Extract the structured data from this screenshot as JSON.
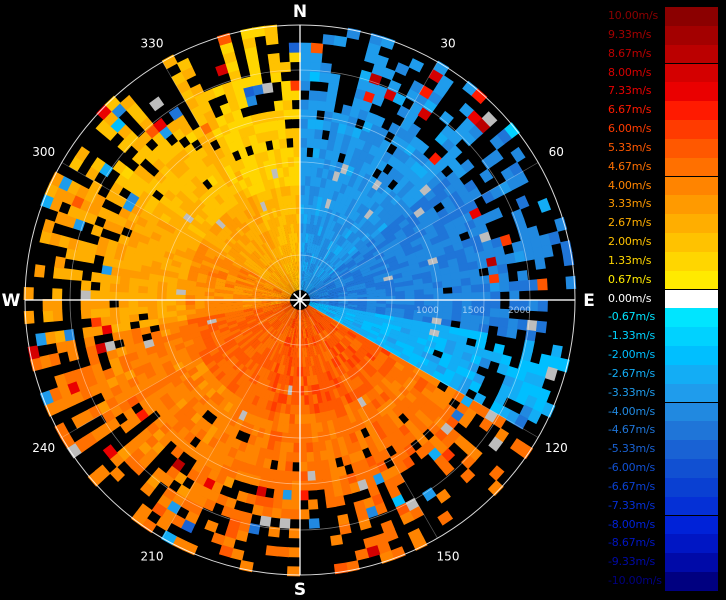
{
  "chart_data": {
    "type": "polar-heatmap",
    "title": "",
    "cardinals": [
      {
        "label": "N",
        "az": 0
      },
      {
        "label": "E",
        "az": 90
      },
      {
        "label": "S",
        "az": 180
      },
      {
        "label": "W",
        "az": 270
      }
    ],
    "azimuth_ticks": [
      {
        "label": "30",
        "az": 30
      },
      {
        "label": "60",
        "az": 60
      },
      {
        "label": "120",
        "az": 120
      },
      {
        "label": "150",
        "az": 150
      },
      {
        "label": "210",
        "az": 210
      },
      {
        "label": "240",
        "az": 240
      },
      {
        "label": "300",
        "az": 300
      },
      {
        "label": "330",
        "az": 330
      }
    ],
    "range_ring_labels": [
      "1000",
      "1500",
      "2000"
    ],
    "colorbar": {
      "unit": "m/s",
      "levels": [
        {
          "label": "10.00m/s",
          "value": 10.0,
          "color": "#8b0000"
        },
        {
          "label": "9.33m/s",
          "value": 9.33,
          "color": "#a30000"
        },
        {
          "label": "8.67m/s",
          "value": 8.67,
          "color": "#bb0000"
        },
        {
          "label": "8.00m/s",
          "value": 8.0,
          "color": "#d40000"
        },
        {
          "label": "7.33m/s",
          "value": 7.33,
          "color": "#ea0000"
        },
        {
          "label": "6.67m/s",
          "value": 6.67,
          "color": "#ff1a00"
        },
        {
          "label": "6.00m/s",
          "value": 6.0,
          "color": "#ff3b00"
        },
        {
          "label": "5.33m/s",
          "value": 5.33,
          "color": "#ff5800"
        },
        {
          "label": "4.67m/s",
          "value": 4.67,
          "color": "#ff7000"
        },
        {
          "label": "4.00m/s",
          "value": 4.0,
          "color": "#ff8400"
        },
        {
          "label": "3.33m/s",
          "value": 3.33,
          "color": "#ff9a00"
        },
        {
          "label": "2.67m/s",
          "value": 2.67,
          "color": "#ffae00"
        },
        {
          "label": "2.00m/s",
          "value": 2.0,
          "color": "#ffc200"
        },
        {
          "label": "1.33m/s",
          "value": 1.33,
          "color": "#ffd600"
        },
        {
          "label": "0.67m/s",
          "value": 0.67,
          "color": "#ffea00"
        },
        {
          "label": "0.00m/s",
          "value": 0.0,
          "color": "#ffffff"
        },
        {
          "label": "-0.67m/s",
          "value": -0.67,
          "color": "#00e5ff"
        },
        {
          "label": "-1.33m/s",
          "value": -1.33,
          "color": "#00d2ff"
        },
        {
          "label": "-2.00m/s",
          "value": -2.0,
          "color": "#00bfff"
        },
        {
          "label": "-2.67m/s",
          "value": -2.67,
          "color": "#13adf5"
        },
        {
          "label": "-3.33m/s",
          "value": -3.33,
          "color": "#1f9cec"
        },
        {
          "label": "-4.00m/s",
          "value": -4.0,
          "color": "#2189e0"
        },
        {
          "label": "-4.67m/s",
          "value": -4.67,
          "color": "#1f75d8"
        },
        {
          "label": "-5.33m/s",
          "value": -5.33,
          "color": "#1962d4"
        },
        {
          "label": "-6.00m/s",
          "value": -6.0,
          "color": "#1150d2"
        },
        {
          "label": "-6.67m/s",
          "value": -6.67,
          "color": "#0a40d2"
        },
        {
          "label": "-7.33m/s",
          "value": -7.33,
          "color": "#0530d6"
        },
        {
          "label": "-8.00m/s",
          "value": -8.0,
          "color": "#0022d8"
        },
        {
          "label": "-8.67m/s",
          "value": -8.67,
          "color": "#0016c4"
        },
        {
          "label": "-9.33m/s",
          "value": -9.33,
          "color": "#000aa8"
        },
        {
          "label": "-10.00m/s",
          "value": -10.0,
          "color": "#000080"
        }
      ]
    },
    "velocity_field": {
      "description_values_mps": "radial velocity by azimuth sector",
      "sectors": [
        {
          "az_from": 0,
          "az_to": 50,
          "velocity": -3.5
        },
        {
          "az_from": 50,
          "az_to": 100,
          "velocity": -4.3
        },
        {
          "az_from": 100,
          "az_to": 120,
          "velocity": -2.5
        },
        {
          "az_from": 120,
          "az_to": 200,
          "velocity": 4.5
        },
        {
          "az_from": 200,
          "az_to": 260,
          "velocity": 4.2
        },
        {
          "az_from": 260,
          "az_to": 300,
          "velocity": 3.0
        },
        {
          "az_from": 300,
          "az_to": 335,
          "velocity": 2.2
        },
        {
          "az_from": 335,
          "az_to": 360,
          "velocity": 1.6
        }
      ]
    }
  }
}
